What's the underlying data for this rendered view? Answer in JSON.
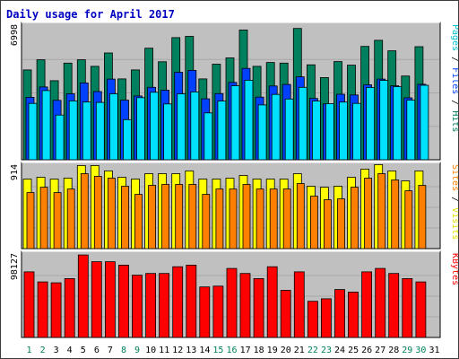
{
  "title": "Daily usage for April 2017",
  "colors": {
    "hits": "#00805c",
    "files": "#0040ff",
    "pages": "#00e0ff",
    "visits": "#ffff00",
    "sites": "#ff8000",
    "kbytes": "#ff0000",
    "weekday_label": "#000000",
    "weekend_label": "#00805c",
    "panel_bg": "#c0c0c0"
  },
  "chart_data": [
    {
      "type": "bar",
      "panel": "hits-files-pages",
      "ymax_label": "6998",
      "side_labels": [
        {
          "text": "Pages",
          "color": "#00c0d0"
        },
        {
          "text": " / ",
          "color": "#000000"
        },
        {
          "text": "Files",
          "color": "#0040ff"
        },
        {
          "text": " / ",
          "color": "#000000"
        },
        {
          "text": "Hits",
          "color": "#00805c"
        }
      ],
      "ylim": [
        0,
        6998
      ],
      "categories": [
        "1",
        "2",
        "3",
        "4",
        "5",
        "6",
        "7",
        "8",
        "9",
        "10",
        "11",
        "12",
        "13",
        "14",
        "15",
        "16",
        "17",
        "18",
        "19",
        "20",
        "21",
        "22",
        "23",
        "24",
        "25",
        "26",
        "27",
        "28",
        "29",
        "30",
        "31"
      ],
      "series": [
        {
          "name": "Hits",
          "values": [
            4700,
            5230,
            4140,
            5060,
            5230,
            4890,
            5590,
            4230,
            4700,
            5840,
            5130,
            6390,
            6460,
            4230,
            5000,
            5330,
            6790,
            4890,
            5090,
            5060,
            6870,
            4970,
            4300,
            5140,
            4950,
            5930,
            6250,
            5700,
            4380,
            5920,
            null
          ]
        },
        {
          "name": "Files",
          "values": [
            3270,
            3810,
            3110,
            3450,
            4020,
            3570,
            4220,
            3120,
            3340,
            3790,
            3640,
            4580,
            4680,
            3190,
            3460,
            4050,
            4780,
            3280,
            3860,
            3940,
            4340,
            3210,
            2920,
            3430,
            3390,
            3920,
            4220,
            3870,
            3240,
            3950,
            null
          ]
        },
        {
          "name": "Pages",
          "values": [
            2950,
            3620,
            2340,
            3080,
            3020,
            3000,
            3450,
            2100,
            3250,
            3530,
            2920,
            3450,
            3550,
            2450,
            3070,
            3870,
            4160,
            2870,
            3420,
            3180,
            3790,
            3070,
            2940,
            3020,
            2950,
            3780,
            4150,
            3830,
            3120,
            3900,
            null
          ]
        }
      ]
    },
    {
      "type": "bar",
      "panel": "visits-sites",
      "ymax_label": "914",
      "side_labels": [
        {
          "text": "Sites",
          "color": "#ff8000"
        },
        {
          "text": " / ",
          "color": "#000000"
        },
        {
          "text": "Visits",
          "color": "#e0e000"
        }
      ],
      "ylim": [
        0,
        914
      ],
      "categories": [
        "1",
        "2",
        "3",
        "4",
        "5",
        "6",
        "7",
        "8",
        "9",
        "10",
        "11",
        "12",
        "13",
        "14",
        "15",
        "16",
        "17",
        "18",
        "19",
        "20",
        "21",
        "22",
        "23",
        "24",
        "25",
        "26",
        "27",
        "28",
        "29",
        "30",
        "31"
      ],
      "series": [
        {
          "name": "Visits",
          "values": [
            770,
            790,
            770,
            780,
            920,
            920,
            860,
            790,
            770,
            830,
            830,
            830,
            860,
            770,
            770,
            780,
            810,
            770,
            770,
            770,
            830,
            690,
            680,
            690,
            790,
            880,
            930,
            860,
            750,
            860,
            null
          ]
        },
        {
          "name": "Sites",
          "values": [
            620,
            680,
            620,
            660,
            830,
            800,
            780,
            690,
            600,
            700,
            710,
            710,
            710,
            600,
            660,
            660,
            710,
            660,
            660,
            660,
            720,
            580,
            540,
            550,
            680,
            780,
            830,
            760,
            640,
            700,
            null
          ]
        }
      ]
    },
    {
      "type": "bar",
      "panel": "kbytes",
      "ymax_label": "98127",
      "side_labels": [
        {
          "text": "KBytes",
          "color": "#ff0000"
        }
      ],
      "ylim": [
        0,
        98127
      ],
      "categories": [
        "1",
        "2",
        "3",
        "4",
        "5",
        "6",
        "7",
        "8",
        "9",
        "10",
        "11",
        "12",
        "13",
        "14",
        "15",
        "16",
        "17",
        "18",
        "19",
        "20",
        "21",
        "22",
        "23",
        "24",
        "25",
        "26",
        "27",
        "28",
        "29",
        "30",
        "31"
      ],
      "series": [
        {
          "name": "KBytes",
          "values": [
            78000,
            66000,
            65000,
            70000,
            98000,
            90000,
            90000,
            86000,
            74000,
            76000,
            76000,
            84000,
            86000,
            60000,
            61000,
            82000,
            76000,
            70000,
            84000,
            56000,
            78000,
            43000,
            46000,
            57000,
            54000,
            78000,
            82000,
            76000,
            70000,
            66000,
            null
          ]
        }
      ]
    }
  ],
  "days": [
    "1",
    "2",
    "3",
    "4",
    "5",
    "6",
    "7",
    "8",
    "9",
    "10",
    "11",
    "12",
    "13",
    "14",
    "15",
    "16",
    "17",
    "18",
    "19",
    "20",
    "21",
    "22",
    "23",
    "24",
    "25",
    "26",
    "27",
    "28",
    "29",
    "30",
    "31"
  ],
  "weekend_days": [
    1,
    2,
    8,
    9,
    15,
    16,
    22,
    23,
    29,
    30
  ]
}
